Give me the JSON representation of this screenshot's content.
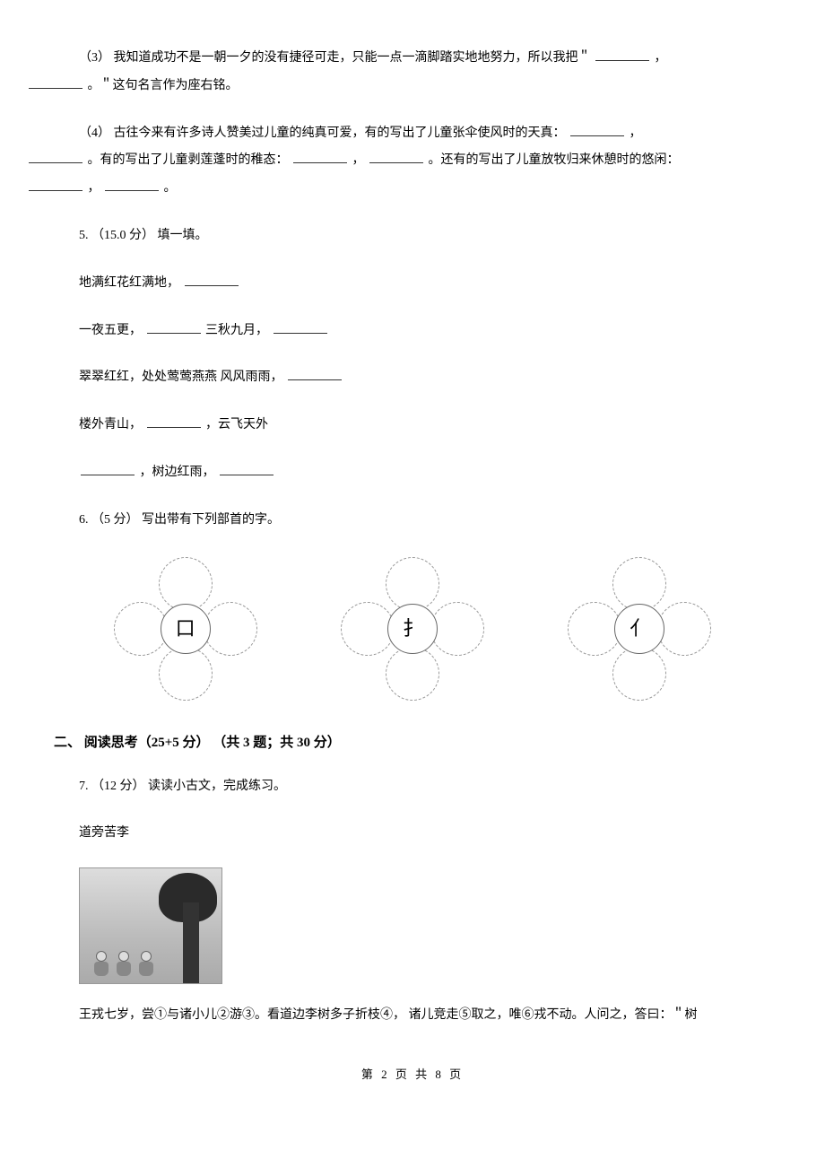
{
  "q3": {
    "text_before": "（3）  我知道成功不是一朝一夕的没有捷径可走，只能一点一滴脚踏实地地努力，所以我把＂ ",
    "text_mid": "，",
    "text_after": "。＂这句名言作为座右铭。"
  },
  "q4": {
    "text1": "（4）  古往今来有许多诗人赞美过儿童的纯真可爱，有的写出了儿童张伞使风时的天真：",
    "text2": "，",
    "text3": "。有的写出了儿童剥莲蓬时的稚态：",
    "text4": "，",
    "text5": " 。还有的写出了儿童放牧归来休憩时的悠闲：",
    "text6": "，",
    "text7": "。"
  },
  "q5": {
    "header": "5.  （15.0 分）  填一填。",
    "line1_a": "地满红花红满地，",
    "line2_a": "一夜五更，",
    "line2_b": "三秋九月，",
    "line3_a": "翠翠红红，处处莺莺燕燕    风风雨雨，",
    "line4_a": "楼外青山，",
    "line4_b": "，云飞天外",
    "line5_a": "，树边红雨，"
  },
  "q6": {
    "header": "6.  （5 分）  写出带有下列部首的字。",
    "flowers": [
      {
        "center": "口"
      },
      {
        "center": "扌"
      },
      {
        "center": "亻"
      }
    ]
  },
  "section2": {
    "title": "二、  阅读思考（25+5 分）  （共 3 题；共 30 分）"
  },
  "q7": {
    "header": "7.  （12 分）  读读小古文，完成练习。",
    "title": "道旁苦李",
    "passage": "王戎七岁，尝①与诸小儿②游③。看道边李树多子折枝④， 诸儿竞走⑤取之，唯⑥戎不动。人问之，答曰：＂树"
  },
  "footer": {
    "text": "第 2 页 共 8 页"
  },
  "colors": {
    "text": "#000000",
    "background": "#ffffff",
    "blank_border": "#333333",
    "petal_border": "#999999"
  }
}
